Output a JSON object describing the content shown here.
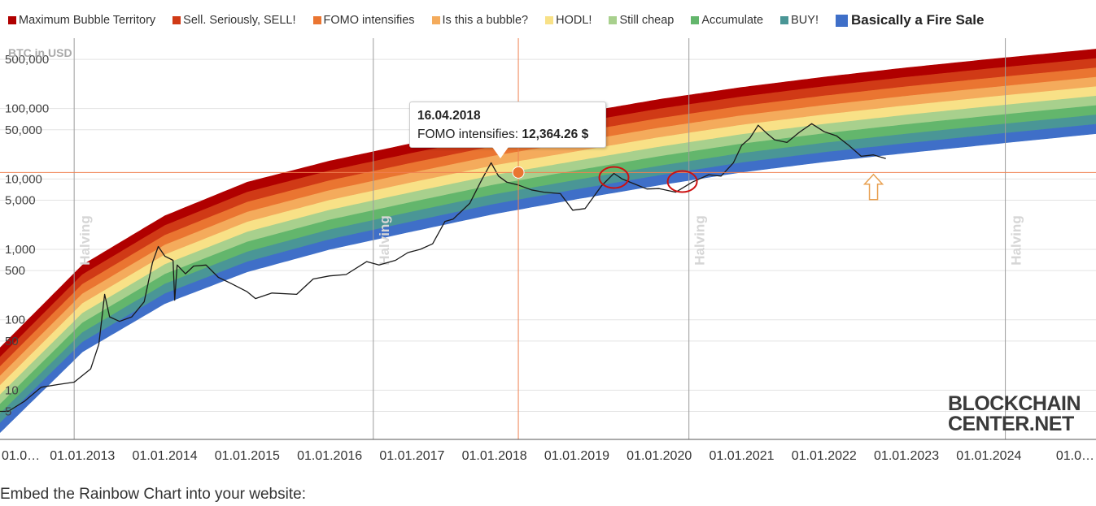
{
  "legend": [
    {
      "label": "Maximum Bubble Territory",
      "color": "#b00000"
    },
    {
      "label": "Sell. Seriously, SELL!",
      "color": "#d03a16"
    },
    {
      "label": "FOMO intensifies",
      "color": "#ea7531"
    },
    {
      "label": "Is this a bubble?",
      "color": "#f4ab5c"
    },
    {
      "label": "HODL!",
      "color": "#f8e187"
    },
    {
      "label": "Still cheap",
      "color": "#a8d08d"
    },
    {
      "label": "Accumulate",
      "color": "#63b66c"
    },
    {
      "label": "BUY!",
      "color": "#4a9696"
    },
    {
      "label": "Basically a Fire Sale",
      "color": "#3f6fc8"
    }
  ],
  "tooltip": {
    "date": "16.04.2018",
    "label": "FOMO intensifies:",
    "value": "12,364.26 $"
  },
  "logo": {
    "line1": "BLOCKCHAIN",
    "line2": "CENTER.NET"
  },
  "embed_text": "Embed the Rainbow Chart into your website:",
  "chart_data": {
    "type": "line",
    "title": "",
    "ylabel": "BTC in USD",
    "yscale": "log",
    "ylim": [
      2,
      1000000
    ],
    "y_ticks": [
      {
        "value": 500000,
        "label": "500,000"
      },
      {
        "value": 100000,
        "label": "100,000"
      },
      {
        "value": 50000,
        "label": "50,000"
      },
      {
        "value": 10000,
        "label": "10,000"
      },
      {
        "value": 5000,
        "label": "5,000"
      },
      {
        "value": 1000,
        "label": "1,000"
      },
      {
        "value": 500,
        "label": "500"
      },
      {
        "value": 100,
        "label": "100"
      },
      {
        "value": 50,
        "label": "50"
      },
      {
        "value": 10,
        "label": "10"
      },
      {
        "value": 5,
        "label": "5"
      }
    ],
    "x_ticks": [
      {
        "value": 2012.0,
        "label": "01.0…"
      },
      {
        "value": 2013.0,
        "label": "01.01.2013"
      },
      {
        "value": 2014.0,
        "label": "01.01.2014"
      },
      {
        "value": 2015.0,
        "label": "01.01.2015"
      },
      {
        "value": 2016.0,
        "label": "01.01.2016"
      },
      {
        "value": 2017.0,
        "label": "01.01.2017"
      },
      {
        "value": 2018.0,
        "label": "01.01.2018"
      },
      {
        "value": 2019.0,
        "label": "01.01.2019"
      },
      {
        "value": 2020.0,
        "label": "01.01.2020"
      },
      {
        "value": 2021.0,
        "label": "01.01.2021"
      },
      {
        "value": 2022.0,
        "label": "01.01.2022"
      },
      {
        "value": 2023.0,
        "label": "01.01.2023"
      },
      {
        "value": 2024.0,
        "label": "01.01.2024"
      },
      {
        "value": 2025.0,
        "label": "01.0…"
      }
    ],
    "xlim": [
      2012.0,
      2025.3
    ],
    "halvings": [
      {
        "date": 2012.9,
        "label": "Halving"
      },
      {
        "date": 2016.53,
        "label": "Halving"
      },
      {
        "date": 2020.36,
        "label": "Halving"
      },
      {
        "date": 2024.2,
        "label": "Halving"
      }
    ],
    "crosshair": {
      "date": 2018.29,
      "price": 12364.26
    },
    "bands_upper_edge": {
      "dates": [
        2012.0,
        2013.0,
        2014.0,
        2015.0,
        2016.0,
        2017.0,
        2018.0,
        2019.0,
        2020.0,
        2021.0,
        2022.0,
        2023.0,
        2024.0,
        2025.3
      ],
      "prices": [
        40,
        600,
        3000,
        9000,
        18000,
        32000,
        55000,
        85000,
        135000,
        200000,
        280000,
        380000,
        500000,
        700000
      ]
    },
    "bands_lower_edge": {
      "dates": [
        2012.0,
        2013.0,
        2014.0,
        2015.0,
        2016.0,
        2017.0,
        2018.0,
        2019.0,
        2020.0,
        2021.0,
        2022.0,
        2023.0,
        2024.0,
        2025.3
      ],
      "prices": [
        2.5,
        35,
        170,
        480,
        1000,
        1800,
        3200,
        5200,
        8200,
        12500,
        17500,
        23500,
        31000,
        44000
      ]
    },
    "series": [
      {
        "dates": [
          2011.95,
          2012.1,
          2012.3,
          2012.5,
          2012.7,
          2012.9,
          2013.1,
          2013.2,
          2013.27,
          2013.33,
          2013.45,
          2013.6,
          2013.75,
          2013.85,
          2013.92,
          2014.0,
          2014.1,
          2014.12,
          2014.15,
          2014.25,
          2014.35,
          2014.5,
          2014.65,
          2014.8,
          2015.0,
          2015.1,
          2015.3,
          2015.6,
          2015.8,
          2016.0,
          2016.2,
          2016.45,
          2016.6,
          2016.8,
          2016.95,
          2017.1,
          2017.25,
          2017.4,
          2017.5,
          2017.7,
          2017.85,
          2017.96,
          2018.05,
          2018.15,
          2018.29,
          2018.45,
          2018.6,
          2018.8,
          2018.95,
          2019.1,
          2019.3,
          2019.45,
          2019.55,
          2019.7,
          2019.85,
          2020.0,
          2020.2,
          2020.4,
          2020.6,
          2020.75,
          2020.9,
          2021.0,
          2021.1,
          2021.2,
          2021.3,
          2021.4,
          2021.55,
          2021.7,
          2021.85,
          2022.0,
          2022.15,
          2022.3,
          2022.45,
          2022.6,
          2022.75
        ],
        "values": [
          5,
          5,
          7,
          11,
          12,
          13,
          20,
          45,
          230,
          110,
          95,
          110,
          180,
          650,
          1100,
          800,
          700,
          190,
          600,
          450,
          580,
          600,
          400,
          330,
          250,
          200,
          240,
          230,
          380,
          420,
          440,
          670,
          600,
          700,
          900,
          1000,
          1200,
          2500,
          2700,
          4500,
          10000,
          17000,
          11000,
          9000,
          8200,
          7000,
          6500,
          6200,
          3600,
          3800,
          8000,
          12000,
          10000,
          8500,
          7200,
          7300,
          6500,
          9000,
          11500,
          11000,
          17000,
          30000,
          38000,
          58000,
          45000,
          36000,
          33000,
          46000,
          61000,
          47000,
          41000,
          30000,
          21000,
          22000,
          19500
        ]
      }
    ],
    "annotations": [
      {
        "type": "circle",
        "color": "#cc1111",
        "date": 2019.45,
        "price": 10500
      },
      {
        "type": "circle",
        "color": "#cc1111",
        "date": 2020.28,
        "price": 9200
      },
      {
        "type": "arrow-up",
        "color": "#e8a050",
        "date": 2022.6,
        "price": 8000
      }
    ]
  }
}
